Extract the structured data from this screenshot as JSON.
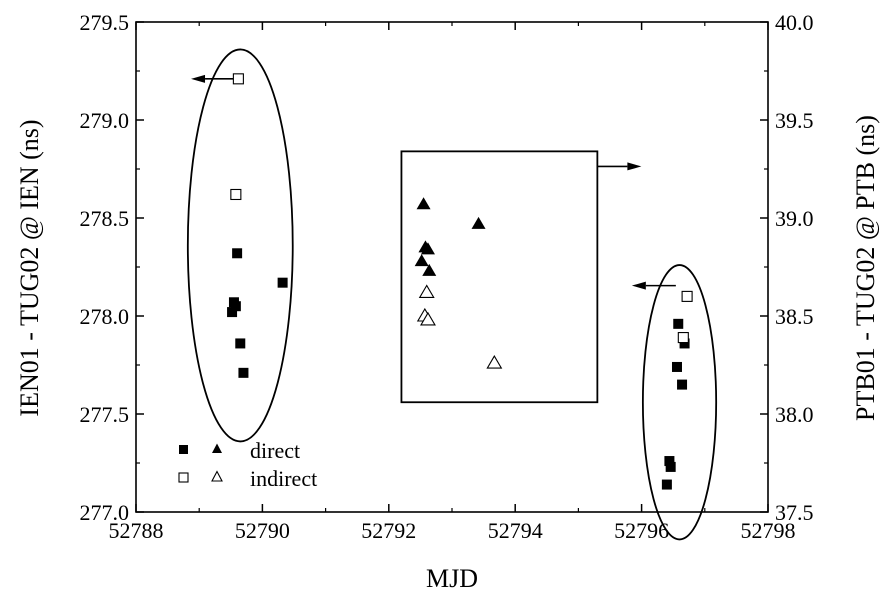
{
  "chart_data": {
    "type": "scatter",
    "xlabel": "MJD",
    "ylabel_left": "IEN01 - TUG02 @ IEN (ns)",
    "ylabel_right": "PTB01 - TUG02 @ PTB (ns)",
    "xlim": [
      52788,
      52798
    ],
    "ylim_left": [
      277.0,
      279.5
    ],
    "ylim_right": [
      37.5,
      40.0
    ],
    "xticks": [
      "52788",
      "52790",
      "52792",
      "52794",
      "52796",
      "52798"
    ],
    "yticks_left": [
      "277.0",
      "277.5",
      "278.0",
      "278.5",
      "279.0",
      "279.5"
    ],
    "yticks_right": [
      "37.5",
      "38.0",
      "38.5",
      "39.0",
      "39.5",
      "40.0"
    ],
    "legend": {
      "position": "bottom-left",
      "entries": [
        {
          "label": "direct",
          "markers": [
            "filled-square",
            "filled-triangle"
          ]
        },
        {
          "label": "indirect",
          "markers": [
            "open-square",
            "open-triangle"
          ]
        }
      ]
    },
    "series": [
      {
        "marker": "filled-square",
        "axis": "left",
        "style": "direct",
        "points": [
          {
            "x": 52789.6,
            "y": 278.32
          },
          {
            "x": 52789.55,
            "y": 278.07
          },
          {
            "x": 52789.58,
            "y": 278.05
          },
          {
            "x": 52789.52,
            "y": 278.02
          },
          {
            "x": 52789.65,
            "y": 277.86
          },
          {
            "x": 52789.7,
            "y": 277.71
          },
          {
            "x": 52790.32,
            "y": 278.17
          }
        ]
      },
      {
        "marker": "open-square",
        "axis": "left",
        "style": "indirect",
        "points": [
          {
            "x": 52789.62,
            "y": 279.21
          },
          {
            "x": 52789.58,
            "y": 278.62
          }
        ]
      },
      {
        "marker": "filled-triangle",
        "axis": "right",
        "style": "direct",
        "points": [
          {
            "x": 52792.55,
            "y": 39.07
          },
          {
            "x": 52792.58,
            "y": 38.85
          },
          {
            "x": 52792.62,
            "y": 38.84
          },
          {
            "x": 52792.52,
            "y": 38.78
          },
          {
            "x": 52792.64,
            "y": 38.73
          },
          {
            "x": 52793.42,
            "y": 38.97
          }
        ]
      },
      {
        "marker": "open-triangle",
        "axis": "right",
        "style": "indirect",
        "points": [
          {
            "x": 52792.6,
            "y": 38.62
          },
          {
            "x": 52792.57,
            "y": 38.5
          },
          {
            "x": 52792.62,
            "y": 38.48
          },
          {
            "x": 52793.67,
            "y": 38.26
          }
        ]
      },
      {
        "marker": "filled-square",
        "axis": "right",
        "style": "direct",
        "points": [
          {
            "x": 52796.58,
            "y": 38.46
          },
          {
            "x": 52796.68,
            "y": 38.36
          },
          {
            "x": 52796.56,
            "y": 38.24
          },
          {
            "x": 52796.64,
            "y": 38.15
          },
          {
            "x": 52796.44,
            "y": 37.76
          },
          {
            "x": 52796.46,
            "y": 37.73
          },
          {
            "x": 52796.4,
            "y": 37.64
          }
        ]
      },
      {
        "marker": "open-square",
        "axis": "right",
        "style": "indirect",
        "points": [
          {
            "x": 52796.72,
            "y": 38.6
          },
          {
            "x": 52796.66,
            "y": 38.39
          }
        ]
      }
    ],
    "annotations": [
      {
        "shape": "ellipse",
        "center": {
          "x": 52789.65,
          "y": 278.36
        },
        "rx_data": 0.83,
        "ry_data": 1.0,
        "axis": "left",
        "arrow": "left"
      },
      {
        "shape": "rectangle",
        "x": [
          52792.2,
          52795.3
        ],
        "y": [
          38.06,
          39.34
        ],
        "axis": "right",
        "arrow": "right"
      },
      {
        "shape": "ellipse",
        "center": {
          "x": 52796.6,
          "y": 38.06
        },
        "rx_data": 0.58,
        "ry_data": 0.7,
        "axis": "right",
        "arrow": "left"
      }
    ]
  }
}
